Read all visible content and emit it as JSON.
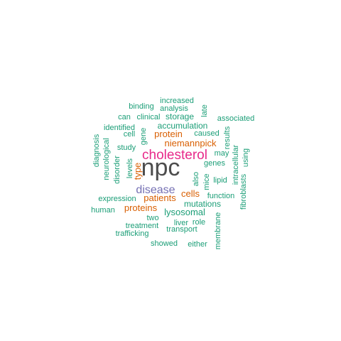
{
  "colors": {
    "dark": "#4d4d4d",
    "magenta": "#e7298a",
    "purple": "#7570b3",
    "orange": "#d95f02",
    "teal": "#1b9e77"
  },
  "words": [
    {
      "text": "npc",
      "color": "dark"
    },
    {
      "text": "cholesterol",
      "color": "magenta"
    },
    {
      "text": "disease",
      "color": "purple"
    },
    {
      "text": "niemannpick",
      "color": "orange"
    },
    {
      "text": "patients",
      "color": "orange"
    },
    {
      "text": "cells",
      "color": "orange"
    },
    {
      "text": "type",
      "color": "orange"
    },
    {
      "text": "protein",
      "color": "orange"
    },
    {
      "text": "proteins",
      "color": "orange"
    },
    {
      "text": "lysosomal",
      "color": "teal"
    },
    {
      "text": "mutations",
      "color": "teal"
    },
    {
      "text": "accumulation",
      "color": "teal"
    },
    {
      "text": "increased",
      "color": "teal"
    },
    {
      "text": "binding",
      "color": "teal"
    },
    {
      "text": "analysis",
      "color": "teal"
    },
    {
      "text": "late",
      "color": "teal"
    },
    {
      "text": "can",
      "color": "teal"
    },
    {
      "text": "clinical",
      "color": "teal"
    },
    {
      "text": "storage",
      "color": "teal"
    },
    {
      "text": "associated",
      "color": "teal"
    },
    {
      "text": "identified",
      "color": "teal"
    },
    {
      "text": "cell",
      "color": "teal"
    },
    {
      "text": "gene",
      "color": "teal"
    },
    {
      "text": "caused",
      "color": "teal"
    },
    {
      "text": "results",
      "color": "teal"
    },
    {
      "text": "diagnosis",
      "color": "teal"
    },
    {
      "text": "neurological",
      "color": "teal"
    },
    {
      "text": "study",
      "color": "teal"
    },
    {
      "text": "disorder",
      "color": "teal"
    },
    {
      "text": "levels",
      "color": "teal"
    },
    {
      "text": "may",
      "color": "teal"
    },
    {
      "text": "intracellular",
      "color": "teal"
    },
    {
      "text": "using",
      "color": "teal"
    },
    {
      "text": "genes",
      "color": "teal"
    },
    {
      "text": "also",
      "color": "teal"
    },
    {
      "text": "mice",
      "color": "teal"
    },
    {
      "text": "lipid",
      "color": "teal"
    },
    {
      "text": "fibroblasts",
      "color": "teal"
    },
    {
      "text": "expression",
      "color": "teal"
    },
    {
      "text": "function",
      "color": "teal"
    },
    {
      "text": "human",
      "color": "teal"
    },
    {
      "text": "two",
      "color": "teal"
    },
    {
      "text": "membrane",
      "color": "teal"
    },
    {
      "text": "liver",
      "color": "teal"
    },
    {
      "text": "role",
      "color": "teal"
    },
    {
      "text": "treatment",
      "color": "teal"
    },
    {
      "text": "transport",
      "color": "teal"
    },
    {
      "text": "trafficking",
      "color": "teal"
    },
    {
      "text": "showed",
      "color": "teal"
    },
    {
      "text": "either",
      "color": "teal"
    }
  ]
}
